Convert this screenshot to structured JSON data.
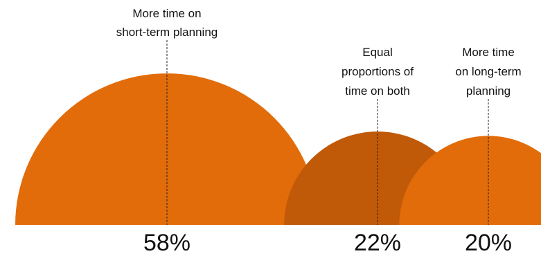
{
  "chart_data": {
    "type": "semicircle",
    "title": "",
    "categories": [
      {
        "label_lines": [
          "More time",
          "short-term planning"
        ],
        "label_line1_suffix": " on",
        "value": 58,
        "value_label": "58%",
        "color": "#e36c0a"
      },
      {
        "label_lines": [
          "Equal",
          "proportions of",
          "time on both"
        ],
        "value": 22,
        "value_label": "22%",
        "color": "#c05a08"
      },
      {
        "label_lines": [
          "More time",
          "on long-term",
          "planning"
        ],
        "value": 20,
        "value_label": "20%",
        "color": "#e36c0a"
      }
    ],
    "area_proportional": true,
    "legend": "none",
    "grid": false
  },
  "labels": {
    "c0_l1": "More time on",
    "c0_l2": "short-term planning",
    "c1_l1": "Equal",
    "c1_l2": "proportions of",
    "c1_l3": "time on both",
    "c2_l1": "More time",
    "c2_l2": "on long-term",
    "c2_l3": "planning",
    "v0": "58%",
    "v1": "22%",
    "v2": "20%"
  }
}
